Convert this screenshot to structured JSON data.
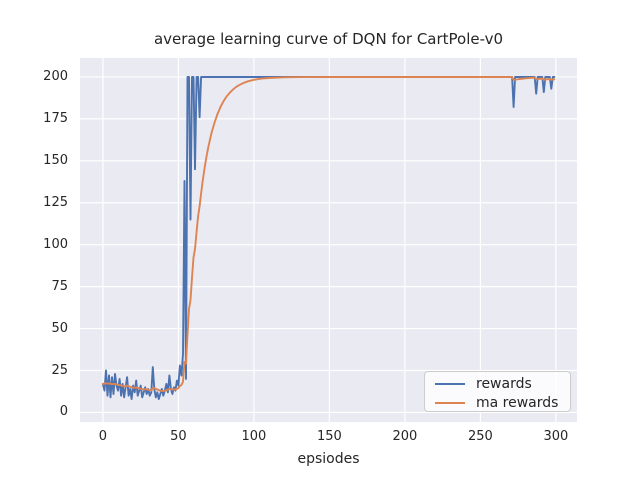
{
  "chart_data": {
    "type": "line",
    "title": "average learning curve of DQN for CartPole-v0",
    "xlabel": "epsiodes",
    "ylabel": "",
    "xlim": [
      -15.2,
      314.0
    ],
    "ylim": [
      -5.7,
      211.3
    ],
    "x_ticks": [
      0,
      50,
      100,
      150,
      200,
      250,
      300
    ],
    "y_ticks": [
      0,
      25,
      50,
      75,
      100,
      125,
      150,
      175,
      200
    ],
    "grid": true,
    "legend_position": "lower right",
    "background_color": "#eaeaf2",
    "grid_color": "#ffffff",
    "text_color": "#262626",
    "series": [
      {
        "name": "rewards",
        "color": "#4c72b0",
        "points": [
          [
            0,
            17
          ],
          [
            1,
            13
          ],
          [
            2,
            25
          ],
          [
            3,
            10
          ],
          [
            4,
            22
          ],
          [
            5,
            9
          ],
          [
            6,
            21
          ],
          [
            7,
            11
          ],
          [
            8,
            23
          ],
          [
            9,
            16
          ],
          [
            10,
            13
          ],
          [
            11,
            20
          ],
          [
            12,
            10
          ],
          [
            13,
            17
          ],
          [
            14,
            9
          ],
          [
            15,
            15
          ],
          [
            16,
            21
          ],
          [
            17,
            10
          ],
          [
            18,
            14
          ],
          [
            19,
            8
          ],
          [
            20,
            16
          ],
          [
            21,
            12
          ],
          [
            22,
            19
          ],
          [
            23,
            10
          ],
          [
            24,
            13
          ],
          [
            25,
            16
          ],
          [
            26,
            9
          ],
          [
            27,
            12
          ],
          [
            28,
            15
          ],
          [
            29,
            11
          ],
          [
            30,
            14
          ],
          [
            31,
            10
          ],
          [
            32,
            12
          ],
          [
            33,
            27
          ],
          [
            34,
            14
          ],
          [
            35,
            9
          ],
          [
            36,
            12
          ],
          [
            37,
            8
          ],
          [
            38,
            11
          ],
          [
            39,
            14
          ],
          [
            40,
            10
          ],
          [
            41,
            13
          ],
          [
            42,
            17
          ],
          [
            43,
            12
          ],
          [
            44,
            22
          ],
          [
            45,
            14
          ],
          [
            46,
            11
          ],
          [
            47,
            15
          ],
          [
            48,
            13
          ],
          [
            49,
            19
          ],
          [
            50,
            16
          ],
          [
            51,
            28
          ],
          [
            52,
            22
          ],
          [
            53,
            35
          ],
          [
            54,
            138
          ],
          [
            55,
            20
          ],
          [
            56,
            200
          ],
          [
            57,
            200
          ],
          [
            58,
            115
          ],
          [
            59,
            200
          ],
          [
            60,
            200
          ],
          [
            61,
            145
          ],
          [
            62,
            200
          ],
          [
            63,
            200
          ],
          [
            64,
            176
          ],
          [
            65,
            200
          ],
          [
            271,
            200
          ],
          [
            272,
            182
          ],
          [
            273,
            200
          ],
          [
            286,
            200
          ],
          [
            287,
            190
          ],
          [
            288,
            200
          ],
          [
            291,
            200
          ],
          [
            292,
            191
          ],
          [
            293,
            200
          ],
          [
            296,
            200
          ],
          [
            297,
            193
          ],
          [
            298,
            200
          ],
          [
            299,
            200
          ]
        ]
      },
      {
        "name": "ma rewards",
        "color": "#dd8452",
        "points": [
          [
            0,
            17
          ],
          [
            2,
            17.4
          ],
          [
            4,
            17.2
          ],
          [
            6,
            16.9
          ],
          [
            8,
            17
          ],
          [
            10,
            16.5
          ],
          [
            12,
            16.1
          ],
          [
            14,
            15.5
          ],
          [
            16,
            16
          ],
          [
            18,
            15.3
          ],
          [
            20,
            14.7
          ],
          [
            22,
            14.9
          ],
          [
            24,
            14.3
          ],
          [
            26,
            13.9
          ],
          [
            28,
            13.8
          ],
          [
            30,
            13.6
          ],
          [
            32,
            13.1
          ],
          [
            33,
            14.5
          ],
          [
            34,
            14.5
          ],
          [
            36,
            13.7
          ],
          [
            38,
            12.9
          ],
          [
            40,
            12.7
          ],
          [
            42,
            13.2
          ],
          [
            44,
            14
          ],
          [
            46,
            13.7
          ],
          [
            48,
            13.7
          ],
          [
            50,
            14.4
          ],
          [
            51,
            15.8
          ],
          [
            52,
            16.4
          ],
          [
            53,
            18.3
          ],
          [
            54,
            30.2
          ],
          [
            55,
            29.2
          ],
          [
            56,
            46.3
          ],
          [
            57,
            61.7
          ],
          [
            58,
            67
          ],
          [
            59,
            80.3
          ],
          [
            60,
            92.3
          ],
          [
            61,
            97.5
          ],
          [
            62,
            107.8
          ],
          [
            63,
            117
          ],
          [
            64,
            122.9
          ],
          [
            65,
            130.6
          ],
          [
            66,
            137.6
          ],
          [
            67,
            143.8
          ],
          [
            68,
            149.4
          ],
          [
            69,
            154.5
          ],
          [
            70,
            159
          ],
          [
            72,
            166.8
          ],
          [
            74,
            173.1
          ],
          [
            76,
            178.2
          ],
          [
            78,
            182.4
          ],
          [
            80,
            185.7
          ],
          [
            82,
            188.4
          ],
          [
            84,
            190.6
          ],
          [
            86,
            192.4
          ],
          [
            88,
            193.9
          ],
          [
            90,
            195
          ],
          [
            93,
            196.4
          ],
          [
            96,
            197.4
          ],
          [
            100,
            198.3
          ],
          [
            105,
            199
          ],
          [
            110,
            199.4
          ],
          [
            120,
            199.8
          ],
          [
            130,
            199.9
          ],
          [
            150,
            200
          ],
          [
            271,
            200
          ],
          [
            272,
            198.2
          ],
          [
            276,
            198.8
          ],
          [
            280,
            199.2
          ],
          [
            286,
            199.6
          ],
          [
            287,
            198.6
          ],
          [
            291,
            199.1
          ],
          [
            292,
            198.3
          ],
          [
            296,
            198.9
          ],
          [
            297,
            198.3
          ],
          [
            299,
            198.6
          ]
        ]
      }
    ]
  }
}
